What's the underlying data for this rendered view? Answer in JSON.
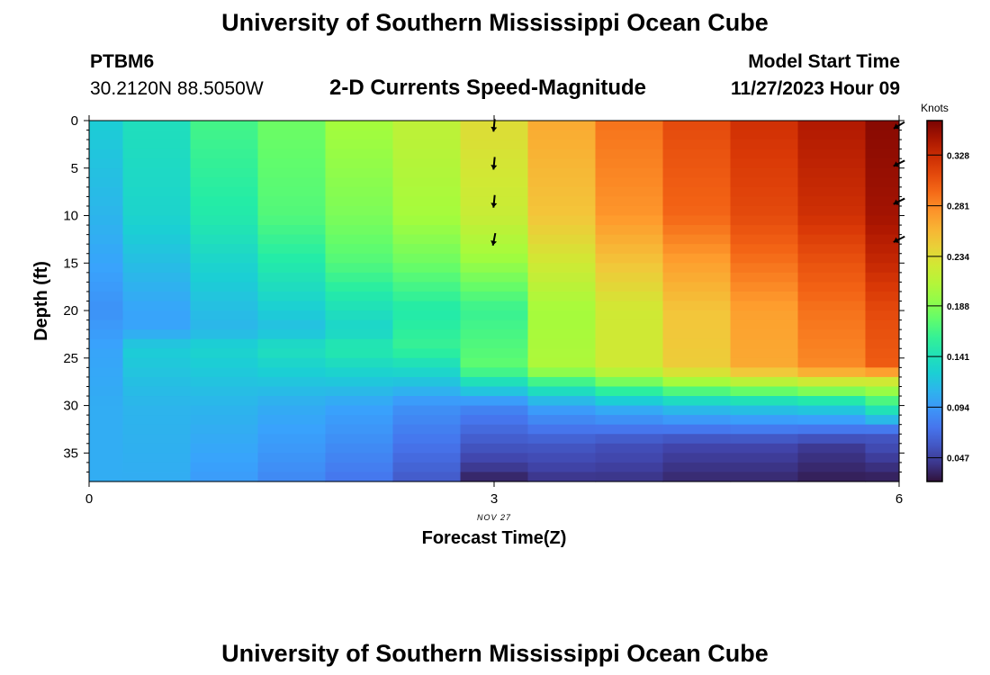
{
  "page": {
    "title": "University of Southern Mississippi Ocean Cube",
    "footer_title": "University of Southern Mississippi Ocean Cube",
    "station": "PTBM6",
    "coords": "30.2120N  88.5050W",
    "chart_title": "2-D Currents Speed-Magnitude",
    "model_start_label": "Model Start Time",
    "model_start_value": "11/27/2023 Hour 09"
  },
  "chart_data": {
    "type": "heatmap",
    "title": "2-D Currents Speed-Magnitude",
    "xlabel": "Forecast Time(Z)",
    "ylabel": "Depth (ft)",
    "x_ticks": [
      "0",
      "3",
      "6"
    ],
    "x_tick_values": [
      0,
      3,
      6
    ],
    "x_date_label": "NOV 27",
    "y_ticks": [
      "0",
      "5",
      "10",
      "15",
      "20",
      "25",
      "30",
      "35"
    ],
    "y_tick_values": [
      0,
      5,
      10,
      15,
      20,
      25,
      30,
      35
    ],
    "xlim": [
      0,
      6
    ],
    "ylim": [
      0,
      38
    ],
    "y_inverted": true,
    "colorbar": {
      "label": "Knots",
      "ticks": [
        "0.047",
        "0.094",
        "0.141",
        "0.188",
        "0.234",
        "0.281",
        "0.328"
      ],
      "tick_values": [
        0.047,
        0.094,
        0.141,
        0.188,
        0.234,
        0.281,
        0.328
      ],
      "range": [
        0.025,
        0.36
      ],
      "colormap": "turbo"
    },
    "columns": [
      {
        "x0": 0.0,
        "x1": 0.25,
        "profile": [
          [
            0,
            0.125
          ],
          [
            10,
            0.11
          ],
          [
            15,
            0.1
          ],
          [
            20,
            0.09
          ],
          [
            24,
            0.1
          ],
          [
            30,
            0.105
          ],
          [
            38,
            0.105
          ]
        ]
      },
      {
        "x0": 0.25,
        "x1": 0.75,
        "profile": [
          [
            0,
            0.14
          ],
          [
            10,
            0.13
          ],
          [
            15,
            0.115
          ],
          [
            20,
            0.1
          ],
          [
            22,
            0.1
          ],
          [
            24,
            0.125
          ],
          [
            30,
            0.11
          ],
          [
            38,
            0.105
          ]
        ]
      },
      {
        "x0": 0.75,
        "x1": 1.25,
        "profile": [
          [
            0,
            0.165
          ],
          [
            10,
            0.15
          ],
          [
            15,
            0.13
          ],
          [
            20,
            0.115
          ],
          [
            22,
            0.11
          ],
          [
            24,
            0.13
          ],
          [
            30,
            0.11
          ],
          [
            38,
            0.095
          ]
        ]
      },
      {
        "x0": 1.25,
        "x1": 1.75,
        "profile": [
          [
            0,
            0.18
          ],
          [
            10,
            0.17
          ],
          [
            15,
            0.15
          ],
          [
            20,
            0.125
          ],
          [
            22,
            0.115
          ],
          [
            24,
            0.14
          ],
          [
            30,
            0.105
          ],
          [
            38,
            0.085
          ]
        ]
      },
      {
        "x0": 1.75,
        "x1": 2.25,
        "profile": [
          [
            0,
            0.2
          ],
          [
            10,
            0.185
          ],
          [
            15,
            0.17
          ],
          [
            20,
            0.14
          ],
          [
            22,
            0.13
          ],
          [
            24,
            0.15
          ],
          [
            30,
            0.1
          ],
          [
            38,
            0.075
          ]
        ]
      },
      {
        "x0": 2.25,
        "x1": 2.75,
        "profile": [
          [
            0,
            0.215
          ],
          [
            10,
            0.2
          ],
          [
            15,
            0.18
          ],
          [
            20,
            0.15
          ],
          [
            24,
            0.16
          ],
          [
            30,
            0.09
          ],
          [
            38,
            0.06
          ]
        ]
      },
      {
        "x0": 2.75,
        "x1": 3.25,
        "profile": [
          [
            0,
            0.235
          ],
          [
            10,
            0.22
          ],
          [
            15,
            0.195
          ],
          [
            20,
            0.16
          ],
          [
            26,
            0.175
          ],
          [
            30,
            0.085
          ],
          [
            37,
            0.04
          ],
          [
            38,
            0.03
          ]
        ]
      },
      {
        "x0": 3.25,
        "x1": 3.75,
        "profile": [
          [
            0,
            0.265
          ],
          [
            10,
            0.25
          ],
          [
            15,
            0.225
          ],
          [
            20,
            0.2
          ],
          [
            26,
            0.205
          ],
          [
            28,
            0.15
          ],
          [
            30,
            0.1
          ],
          [
            34,
            0.06
          ],
          [
            38,
            0.04
          ]
        ]
      },
      {
        "x0": 3.75,
        "x1": 4.25,
        "profile": [
          [
            0,
            0.29
          ],
          [
            10,
            0.275
          ],
          [
            15,
            0.25
          ],
          [
            20,
            0.225
          ],
          [
            26,
            0.225
          ],
          [
            28,
            0.17
          ],
          [
            30,
            0.11
          ],
          [
            34,
            0.055
          ],
          [
            38,
            0.04
          ]
        ]
      },
      {
        "x0": 4.25,
        "x1": 4.75,
        "profile": [
          [
            0,
            0.31
          ],
          [
            10,
            0.295
          ],
          [
            15,
            0.27
          ],
          [
            20,
            0.25
          ],
          [
            26,
            0.245
          ],
          [
            28,
            0.185
          ],
          [
            30,
            0.12
          ],
          [
            34,
            0.05
          ],
          [
            38,
            0.035
          ]
        ]
      },
      {
        "x0": 4.75,
        "x1": 5.25,
        "profile": [
          [
            0,
            0.325
          ],
          [
            10,
            0.31
          ],
          [
            15,
            0.29
          ],
          [
            20,
            0.27
          ],
          [
            26,
            0.265
          ],
          [
            28,
            0.195
          ],
          [
            30,
            0.125
          ],
          [
            34,
            0.05
          ],
          [
            38,
            0.035
          ]
        ]
      },
      {
        "x0": 5.25,
        "x1": 5.75,
        "profile": [
          [
            0,
            0.34
          ],
          [
            10,
            0.325
          ],
          [
            15,
            0.305
          ],
          [
            20,
            0.29
          ],
          [
            26,
            0.28
          ],
          [
            28,
            0.205
          ],
          [
            30,
            0.13
          ],
          [
            34,
            0.045
          ],
          [
            38,
            0.03
          ]
        ]
      },
      {
        "x0": 5.75,
        "x1": 6.0,
        "profile": [
          [
            0,
            0.355
          ],
          [
            10,
            0.345
          ],
          [
            15,
            0.33
          ],
          [
            20,
            0.31
          ],
          [
            26,
            0.3
          ],
          [
            27,
            0.24
          ],
          [
            29,
            0.18
          ],
          [
            31,
            0.13
          ],
          [
            33,
            0.06
          ],
          [
            38,
            0.03
          ]
        ]
      }
    ],
    "vectors": [
      {
        "x": 3,
        "depth": 0.5,
        "u": -0.1,
        "v": -1.0
      },
      {
        "x": 3,
        "depth": 4.5,
        "u": -0.1,
        "v": -1.0
      },
      {
        "x": 3,
        "depth": 8.5,
        "u": -0.1,
        "v": -1.0
      },
      {
        "x": 3,
        "depth": 12.5,
        "u": -0.2,
        "v": -1.0
      },
      {
        "x": 6,
        "depth": 0.5,
        "u": -1.0,
        "v": -0.6
      },
      {
        "x": 6,
        "depth": 4.5,
        "u": -1.0,
        "v": -0.5
      },
      {
        "x": 6,
        "depth": 8.5,
        "u": -1.0,
        "v": -0.5
      },
      {
        "x": 6,
        "depth": 12.5,
        "u": -1.0,
        "v": -0.5
      }
    ]
  }
}
